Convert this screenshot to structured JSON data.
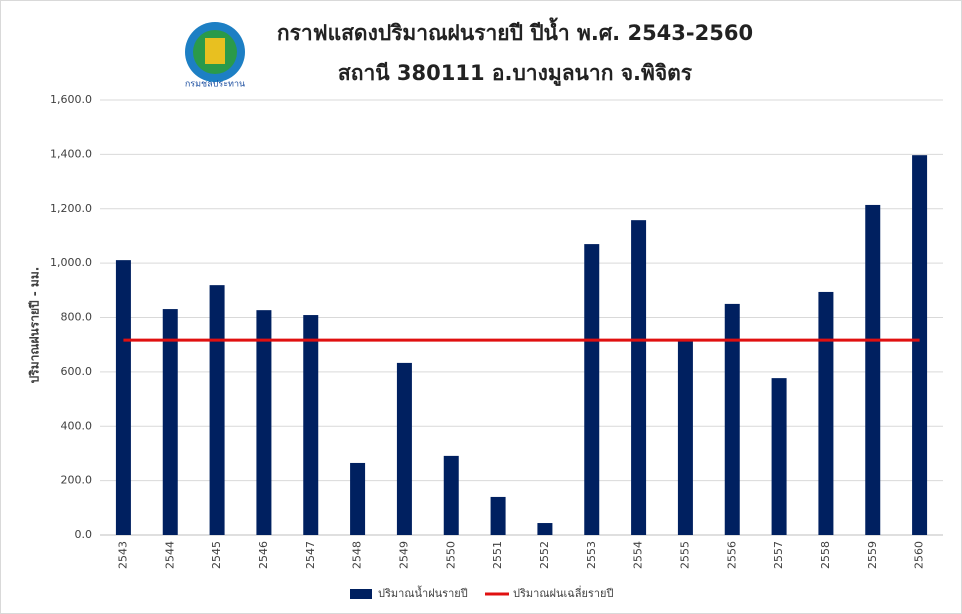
{
  "chart_data": {
    "type": "bar",
    "title": "กราฟแสดงปริมาณฝนรายปี ปีน้ำ พ.ศ. 2543-2560",
    "subtitle": "สถานี 380111 อ.บางมูลนาก จ.พิจิตร",
    "logo_text": "กรมชลประทาน",
    "y_label": "ปริมาณฝนรายปี  - มม.",
    "categories": [
      "2543",
      "2544",
      "2545",
      "2546",
      "2547",
      "2548",
      "2549",
      "2550",
      "2551",
      "2552",
      "2553",
      "2554",
      "2555",
      "2556",
      "2557",
      "2558",
      "2559",
      "2560"
    ],
    "series": [
      {
        "name": "ปริมาณน้ำฝนรายปี",
        "type": "bar",
        "color": "#002060",
        "values": [
          1011,
          831,
          919,
          827,
          809,
          265,
          633,
          291,
          140,
          44,
          1070,
          1158,
          717,
          850,
          577,
          894,
          1214,
          1397
        ]
      },
      {
        "name": "ปริมาณฝนเฉลี่ยรายปี",
        "type": "line",
        "color": "#e01010",
        "values": [
          717,
          717,
          717,
          717,
          717,
          717,
          717,
          717,
          717,
          717,
          717,
          717,
          717,
          717,
          717,
          717,
          717,
          717
        ]
      }
    ],
    "ylim": [
      0,
      1600
    ],
    "yticks": [
      {
        "value": 0,
        "label": "0.0"
      },
      {
        "value": 200,
        "label": "200.0"
      },
      {
        "value": 400,
        "label": "400.0"
      },
      {
        "value": 600,
        "label": "600.0"
      },
      {
        "value": 800,
        "label": "800.0"
      },
      {
        "value": 1000,
        "label": "1,000.0"
      },
      {
        "value": 1200,
        "label": "1,200.0"
      },
      {
        "value": 1400,
        "label": "1,400.0"
      },
      {
        "value": 1600,
        "label": "1,600.0"
      }
    ],
    "grid": true
  }
}
